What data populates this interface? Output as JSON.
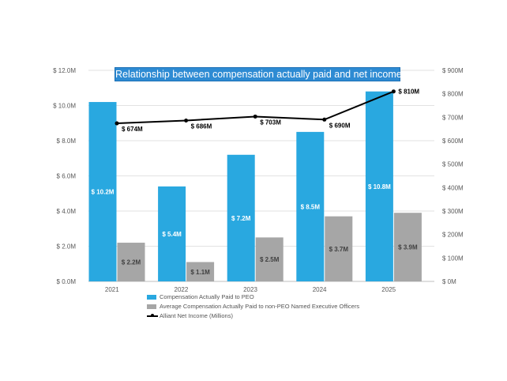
{
  "chart_data": {
    "type": "bar",
    "title": "Relationship between compensation actually paid and net income",
    "categories": [
      "2021",
      "2022",
      "2023",
      "2024",
      "2025"
    ],
    "series": [
      {
        "name": "Compensation Actually Paid to PEO",
        "axis": "left",
        "kind": "bar",
        "color": "#29a8e0",
        "values": [
          10.2,
          5.4,
          7.2,
          8.5,
          10.8
        ],
        "labels": [
          "$ 10.2M",
          "$ 5.4M",
          "$ 7.2M",
          "$ 8.5M",
          "$ 10.8M"
        ]
      },
      {
        "name": "Average Compensation Actually Paid to non-PEO Named Executive Officers",
        "axis": "left",
        "kind": "bar",
        "color": "#a6a6a6",
        "values": [
          2.2,
          1.1,
          2.5,
          3.7,
          3.9
        ],
        "labels": [
          "$ 2.2M",
          "$ 1.1M",
          "$ 2.5M",
          "$ 3.7M",
          "$ 3.9M"
        ]
      },
      {
        "name": "Alliant Net Income (Millions)",
        "axis": "right",
        "kind": "line",
        "color": "#000000",
        "values": [
          674,
          686,
          703,
          690,
          810
        ],
        "labels": [
          "$ 674M",
          "$ 686M",
          "$ 703M",
          "$ 690M",
          "$ 810M"
        ]
      }
    ],
    "left_axis": {
      "ylim": [
        0,
        12
      ],
      "ticks": [
        0,
        2,
        4,
        6,
        8,
        10,
        12
      ],
      "tick_labels": [
        "$ 0.0M",
        "$ 2.0M",
        "$ 4.0M",
        "$ 6.0M",
        "$ 8.0M",
        "$ 10.0M",
        "$ 12.0M"
      ]
    },
    "right_axis": {
      "ylim": [
        0,
        900
      ],
      "ticks": [
        0,
        100,
        200,
        300,
        400,
        500,
        600,
        700,
        800,
        900
      ],
      "tick_labels": [
        "$ 0M",
        "$ 100M",
        "$ 200M",
        "$ 300M",
        "$ 400M",
        "$ 500M",
        "$ 600M",
        "$ 700M",
        "$ 800M",
        "$ 900M"
      ]
    },
    "grid": true,
    "legend_position": "bottom",
    "colors": {
      "title_bg": "#2e8bd3",
      "grid": "#d9d9d9",
      "axis_text": "#595959"
    }
  }
}
